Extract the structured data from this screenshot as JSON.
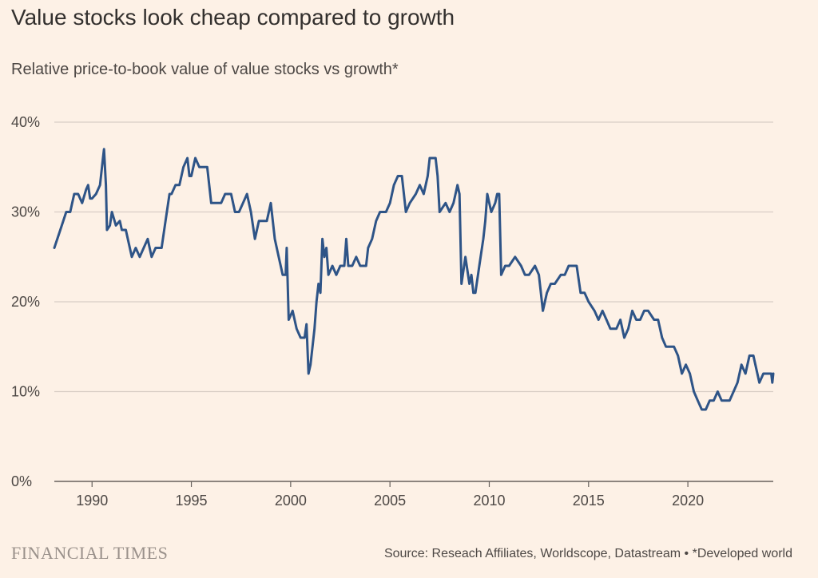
{
  "header": {
    "title": "Value stocks look cheap compared to growth",
    "subtitle": "Relative price-to-book value of value stocks vs growth*"
  },
  "footer": {
    "brand": "FINANCIAL TIMES",
    "source": "Source: Reseach Affiliates, Worldscope, Datastream • *Developed world"
  },
  "colors": {
    "background": "#fdf1e6",
    "line": "#2e5487",
    "gridline": "#d9cec5",
    "axis": "#66605c"
  },
  "chart_data": {
    "type": "line",
    "title": "Value stocks look cheap compared to growth",
    "subtitle": "Relative price-to-book value of value stocks vs growth*",
    "xlabel": "",
    "ylabel": "",
    "xlim": [
      1988.1,
      2024.3
    ],
    "ylim": [
      0,
      40
    ],
    "y_ticks": [
      0,
      10,
      20,
      30,
      40
    ],
    "y_tick_labels": [
      "0%",
      "10%",
      "20%",
      "30%",
      "40%"
    ],
    "x_ticks": [
      1990,
      1995,
      2000,
      2005,
      2010,
      2015,
      2020
    ],
    "x_tick_labels": [
      "1990",
      "1995",
      "2000",
      "2005",
      "2010",
      "2015",
      "2020"
    ],
    "grid": true,
    "series": [
      {
        "values": [
          [
            1988.1,
            26
          ],
          [
            1988.4,
            28
          ],
          [
            1988.7,
            30
          ],
          [
            1988.9,
            30
          ],
          [
            1989.1,
            32
          ],
          [
            1989.3,
            32
          ],
          [
            1989.5,
            31
          ],
          [
            1989.7,
            32.5
          ],
          [
            1989.8,
            33
          ],
          [
            1989.9,
            31.5
          ],
          [
            1990.0,
            31.5
          ],
          [
            1990.2,
            32
          ],
          [
            1990.4,
            33
          ],
          [
            1990.55,
            36
          ],
          [
            1990.6,
            37
          ],
          [
            1990.7,
            33
          ],
          [
            1990.75,
            28
          ],
          [
            1990.9,
            28.5
          ],
          [
            1991.0,
            30
          ],
          [
            1991.2,
            28.5
          ],
          [
            1991.4,
            29
          ],
          [
            1991.5,
            28
          ],
          [
            1991.7,
            28
          ],
          [
            1991.9,
            26
          ],
          [
            1992.0,
            25
          ],
          [
            1992.2,
            26
          ],
          [
            1992.4,
            25
          ],
          [
            1992.6,
            26
          ],
          [
            1992.8,
            27
          ],
          [
            1993.0,
            25
          ],
          [
            1993.2,
            26
          ],
          [
            1993.5,
            26
          ],
          [
            1993.7,
            29
          ],
          [
            1993.9,
            32
          ],
          [
            1994.0,
            32
          ],
          [
            1994.2,
            33
          ],
          [
            1994.4,
            33
          ],
          [
            1994.6,
            35
          ],
          [
            1994.8,
            36
          ],
          [
            1994.9,
            34
          ],
          [
            1995.0,
            34
          ],
          [
            1995.2,
            36
          ],
          [
            1995.4,
            35
          ],
          [
            1995.6,
            35
          ],
          [
            1995.8,
            35
          ],
          [
            1996.0,
            31
          ],
          [
            1996.2,
            31
          ],
          [
            1996.5,
            31
          ],
          [
            1996.7,
            32
          ],
          [
            1997.0,
            32
          ],
          [
            1997.2,
            30
          ],
          [
            1997.4,
            30
          ],
          [
            1997.6,
            31
          ],
          [
            1997.8,
            32
          ],
          [
            1998.0,
            30
          ],
          [
            1998.2,
            27
          ],
          [
            1998.4,
            29
          ],
          [
            1998.6,
            29
          ],
          [
            1998.8,
            29
          ],
          [
            1999.0,
            31
          ],
          [
            1999.2,
            27
          ],
          [
            1999.4,
            25
          ],
          [
            1999.6,
            23
          ],
          [
            1999.75,
            23
          ],
          [
            1999.8,
            26
          ],
          [
            1999.9,
            18
          ],
          [
            2000.0,
            18.5
          ],
          [
            2000.1,
            19
          ],
          [
            2000.3,
            17
          ],
          [
            2000.5,
            16
          ],
          [
            2000.7,
            16
          ],
          [
            2000.8,
            17.5
          ],
          [
            2000.9,
            12
          ],
          [
            2001.0,
            13
          ],
          [
            2001.2,
            17
          ],
          [
            2001.3,
            20
          ],
          [
            2001.4,
            22
          ],
          [
            2001.5,
            21
          ],
          [
            2001.6,
            27
          ],
          [
            2001.7,
            25
          ],
          [
            2001.8,
            26
          ],
          [
            2001.9,
            23
          ],
          [
            2002.1,
            24
          ],
          [
            2002.3,
            23
          ],
          [
            2002.5,
            24
          ],
          [
            2002.7,
            24
          ],
          [
            2002.8,
            27
          ],
          [
            2002.9,
            24
          ],
          [
            2003.1,
            24
          ],
          [
            2003.3,
            25
          ],
          [
            2003.5,
            24
          ],
          [
            2003.8,
            24
          ],
          [
            2003.9,
            26
          ],
          [
            2004.1,
            27
          ],
          [
            2004.3,
            29
          ],
          [
            2004.5,
            30
          ],
          [
            2004.8,
            30
          ],
          [
            2005.0,
            31
          ],
          [
            2005.2,
            33
          ],
          [
            2005.4,
            34
          ],
          [
            2005.6,
            34
          ],
          [
            2005.8,
            30
          ],
          [
            2006.0,
            31
          ],
          [
            2006.3,
            32
          ],
          [
            2006.5,
            33
          ],
          [
            2006.7,
            32
          ],
          [
            2006.9,
            34
          ],
          [
            2007.0,
            36
          ],
          [
            2007.3,
            36
          ],
          [
            2007.4,
            34
          ],
          [
            2007.5,
            30
          ],
          [
            2007.8,
            31
          ],
          [
            2008.0,
            30
          ],
          [
            2008.2,
            31
          ],
          [
            2008.4,
            33
          ],
          [
            2008.5,
            32
          ],
          [
            2008.6,
            22
          ],
          [
            2008.8,
            25
          ],
          [
            2009.0,
            22
          ],
          [
            2009.1,
            23
          ],
          [
            2009.2,
            21
          ],
          [
            2009.3,
            21
          ],
          [
            2009.5,
            24
          ],
          [
            2009.7,
            27
          ],
          [
            2009.8,
            29
          ],
          [
            2009.9,
            32
          ],
          [
            2010.1,
            30
          ],
          [
            2010.3,
            31
          ],
          [
            2010.4,
            32
          ],
          [
            2010.5,
            32
          ],
          [
            2010.6,
            23
          ],
          [
            2010.8,
            24
          ],
          [
            2011.0,
            24
          ],
          [
            2011.3,
            25
          ],
          [
            2011.6,
            24
          ],
          [
            2011.8,
            23
          ],
          [
            2012.0,
            23
          ],
          [
            2012.3,
            24
          ],
          [
            2012.5,
            23
          ],
          [
            2012.7,
            19
          ],
          [
            2012.9,
            21
          ],
          [
            2013.1,
            22
          ],
          [
            2013.3,
            22
          ],
          [
            2013.6,
            23
          ],
          [
            2013.8,
            23
          ],
          [
            2014.0,
            24
          ],
          [
            2014.2,
            24
          ],
          [
            2014.4,
            24
          ],
          [
            2014.6,
            21
          ],
          [
            2014.8,
            21
          ],
          [
            2015.0,
            20
          ],
          [
            2015.3,
            19
          ],
          [
            2015.5,
            18
          ],
          [
            2015.7,
            19
          ],
          [
            2015.9,
            18
          ],
          [
            2016.1,
            17
          ],
          [
            2016.4,
            17
          ],
          [
            2016.6,
            18
          ],
          [
            2016.8,
            16
          ],
          [
            2017.0,
            17
          ],
          [
            2017.2,
            19
          ],
          [
            2017.4,
            18
          ],
          [
            2017.6,
            18
          ],
          [
            2017.8,
            19
          ],
          [
            2018.0,
            19
          ],
          [
            2018.3,
            18
          ],
          [
            2018.5,
            18
          ],
          [
            2018.7,
            16
          ],
          [
            2018.9,
            15
          ],
          [
            2019.1,
            15
          ],
          [
            2019.3,
            15
          ],
          [
            2019.5,
            14
          ],
          [
            2019.7,
            12
          ],
          [
            2019.9,
            13
          ],
          [
            2020.1,
            12
          ],
          [
            2020.3,
            10
          ],
          [
            2020.5,
            9
          ],
          [
            2020.7,
            8
          ],
          [
            2020.9,
            8
          ],
          [
            2021.1,
            9
          ],
          [
            2021.3,
            9
          ],
          [
            2021.5,
            10
          ],
          [
            2021.7,
            9
          ],
          [
            2021.9,
            9
          ],
          [
            2022.1,
            9
          ],
          [
            2022.3,
            10
          ],
          [
            2022.5,
            11
          ],
          [
            2022.7,
            13
          ],
          [
            2022.9,
            12
          ],
          [
            2023.1,
            14
          ],
          [
            2023.3,
            14
          ],
          [
            2023.5,
            12
          ],
          [
            2023.6,
            11
          ],
          [
            2023.8,
            12
          ],
          [
            2024.0,
            12
          ],
          [
            2024.2,
            12
          ],
          [
            2024.25,
            11
          ],
          [
            2024.3,
            12
          ]
        ]
      }
    ]
  }
}
